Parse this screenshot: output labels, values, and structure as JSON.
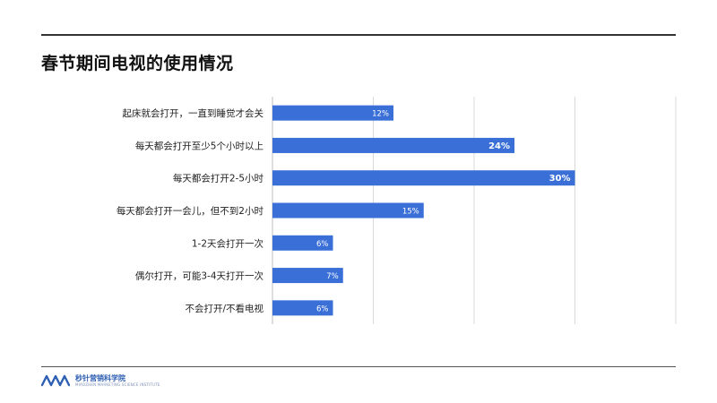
{
  "page": {
    "title": "春节期间电视的使用情况"
  },
  "footer": {
    "brand": "秒针营销科学院",
    "subtitle": "MIAOZHEN MARKETING SCIENCE INSTITUTE"
  },
  "colors": {
    "bar": "#3a6fd8",
    "label_inside": "#ffffff",
    "grid": "#d9d9d9"
  },
  "chart_data": {
    "type": "bar",
    "orientation": "horizontal",
    "categories": [
      "起床就会打开，一直到睡觉才会关",
      "每天都会打开至少5个小时以上",
      "每天都会打开2-5小时",
      "每天都会打开一会儿，但不到2小时",
      "1-2天会打开一次",
      "偶尔打开，可能3-4天打开一次",
      "不会打开/不看电视"
    ],
    "values": [
      12,
      24,
      30,
      15,
      6,
      7,
      6
    ],
    "value_labels": [
      "12%",
      "24%",
      "30%",
      "15%",
      "6%",
      "7%",
      "6%"
    ],
    "xlim": [
      0,
      40
    ],
    "grid": true,
    "legend": "none"
  }
}
